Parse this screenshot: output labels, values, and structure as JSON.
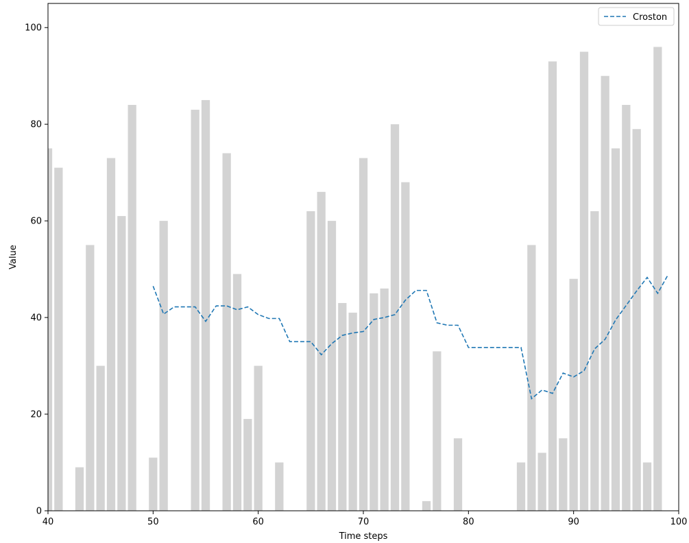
{
  "chart_data": {
    "type": "bar",
    "xlabel": "Time steps",
    "ylabel": "Value",
    "xlim": [
      40,
      100
    ],
    "ylim": [
      0,
      105
    ],
    "x_ticks": [
      40,
      50,
      60,
      70,
      80,
      90,
      100
    ],
    "y_ticks": [
      0,
      20,
      40,
      60,
      80,
      100
    ],
    "grid": false,
    "legend_placement": "top-right",
    "bar_color": "#d3d3d3",
    "bars": {
      "x": [
        40,
        41,
        42,
        43,
        44,
        45,
        46,
        47,
        48,
        49,
        50,
        51,
        52,
        53,
        54,
        55,
        56,
        57,
        58,
        59,
        60,
        61,
        62,
        63,
        64,
        65,
        66,
        67,
        68,
        69,
        70,
        71,
        72,
        73,
        74,
        75,
        76,
        77,
        78,
        79,
        80,
        81,
        82,
        83,
        84,
        85,
        86,
        87,
        88,
        89,
        90,
        91,
        92,
        93,
        94,
        95,
        96,
        97,
        98,
        99
      ],
      "values": [
        75,
        71,
        0,
        9,
        55,
        30,
        73,
        61,
        84,
        0,
        11,
        60,
        0,
        0,
        83,
        85,
        0,
        74,
        49,
        19,
        30,
        0,
        10,
        0,
        0,
        62,
        66,
        60,
        43,
        41,
        73,
        45,
        46,
        80,
        68,
        0,
        2,
        33,
        0,
        15,
        0,
        0,
        0,
        0,
        0,
        10,
        55,
        12,
        93,
        15,
        48,
        95,
        62,
        90,
        75,
        84,
        79,
        10,
        96,
        0
      ]
    },
    "series": [
      {
        "name": "Croston",
        "style": "dashed",
        "color": "#1f77b4",
        "x": [
          50,
          51,
          52,
          53,
          54,
          55,
          56,
          57,
          58,
          59,
          60,
          61,
          62,
          63,
          64,
          65,
          66,
          67,
          68,
          69,
          70,
          71,
          72,
          73,
          74,
          75,
          76,
          77,
          78,
          79,
          80,
          81,
          82,
          83,
          84,
          85,
          86,
          87,
          88,
          89,
          90,
          91,
          92,
          93,
          94,
          95,
          96,
          97,
          98,
          99
        ],
        "values": [
          46.5,
          40.7,
          42.2,
          42.2,
          42.2,
          39.2,
          42.4,
          42.4,
          41.6,
          42.2,
          40.6,
          39.8,
          39.8,
          35.0,
          35.0,
          35.0,
          32.3,
          34.6,
          36.3,
          36.8,
          37.1,
          39.6,
          40.0,
          40.6,
          43.6,
          45.6,
          45.6,
          38.9,
          38.4,
          38.4,
          33.8,
          33.8,
          33.8,
          33.8,
          33.8,
          33.8,
          23.2,
          25.0,
          24.3,
          28.5,
          27.7,
          29.0,
          33.5,
          35.5,
          39.5,
          42.5,
          45.5,
          48.3,
          45.0,
          48.9
        ]
      }
    ]
  }
}
